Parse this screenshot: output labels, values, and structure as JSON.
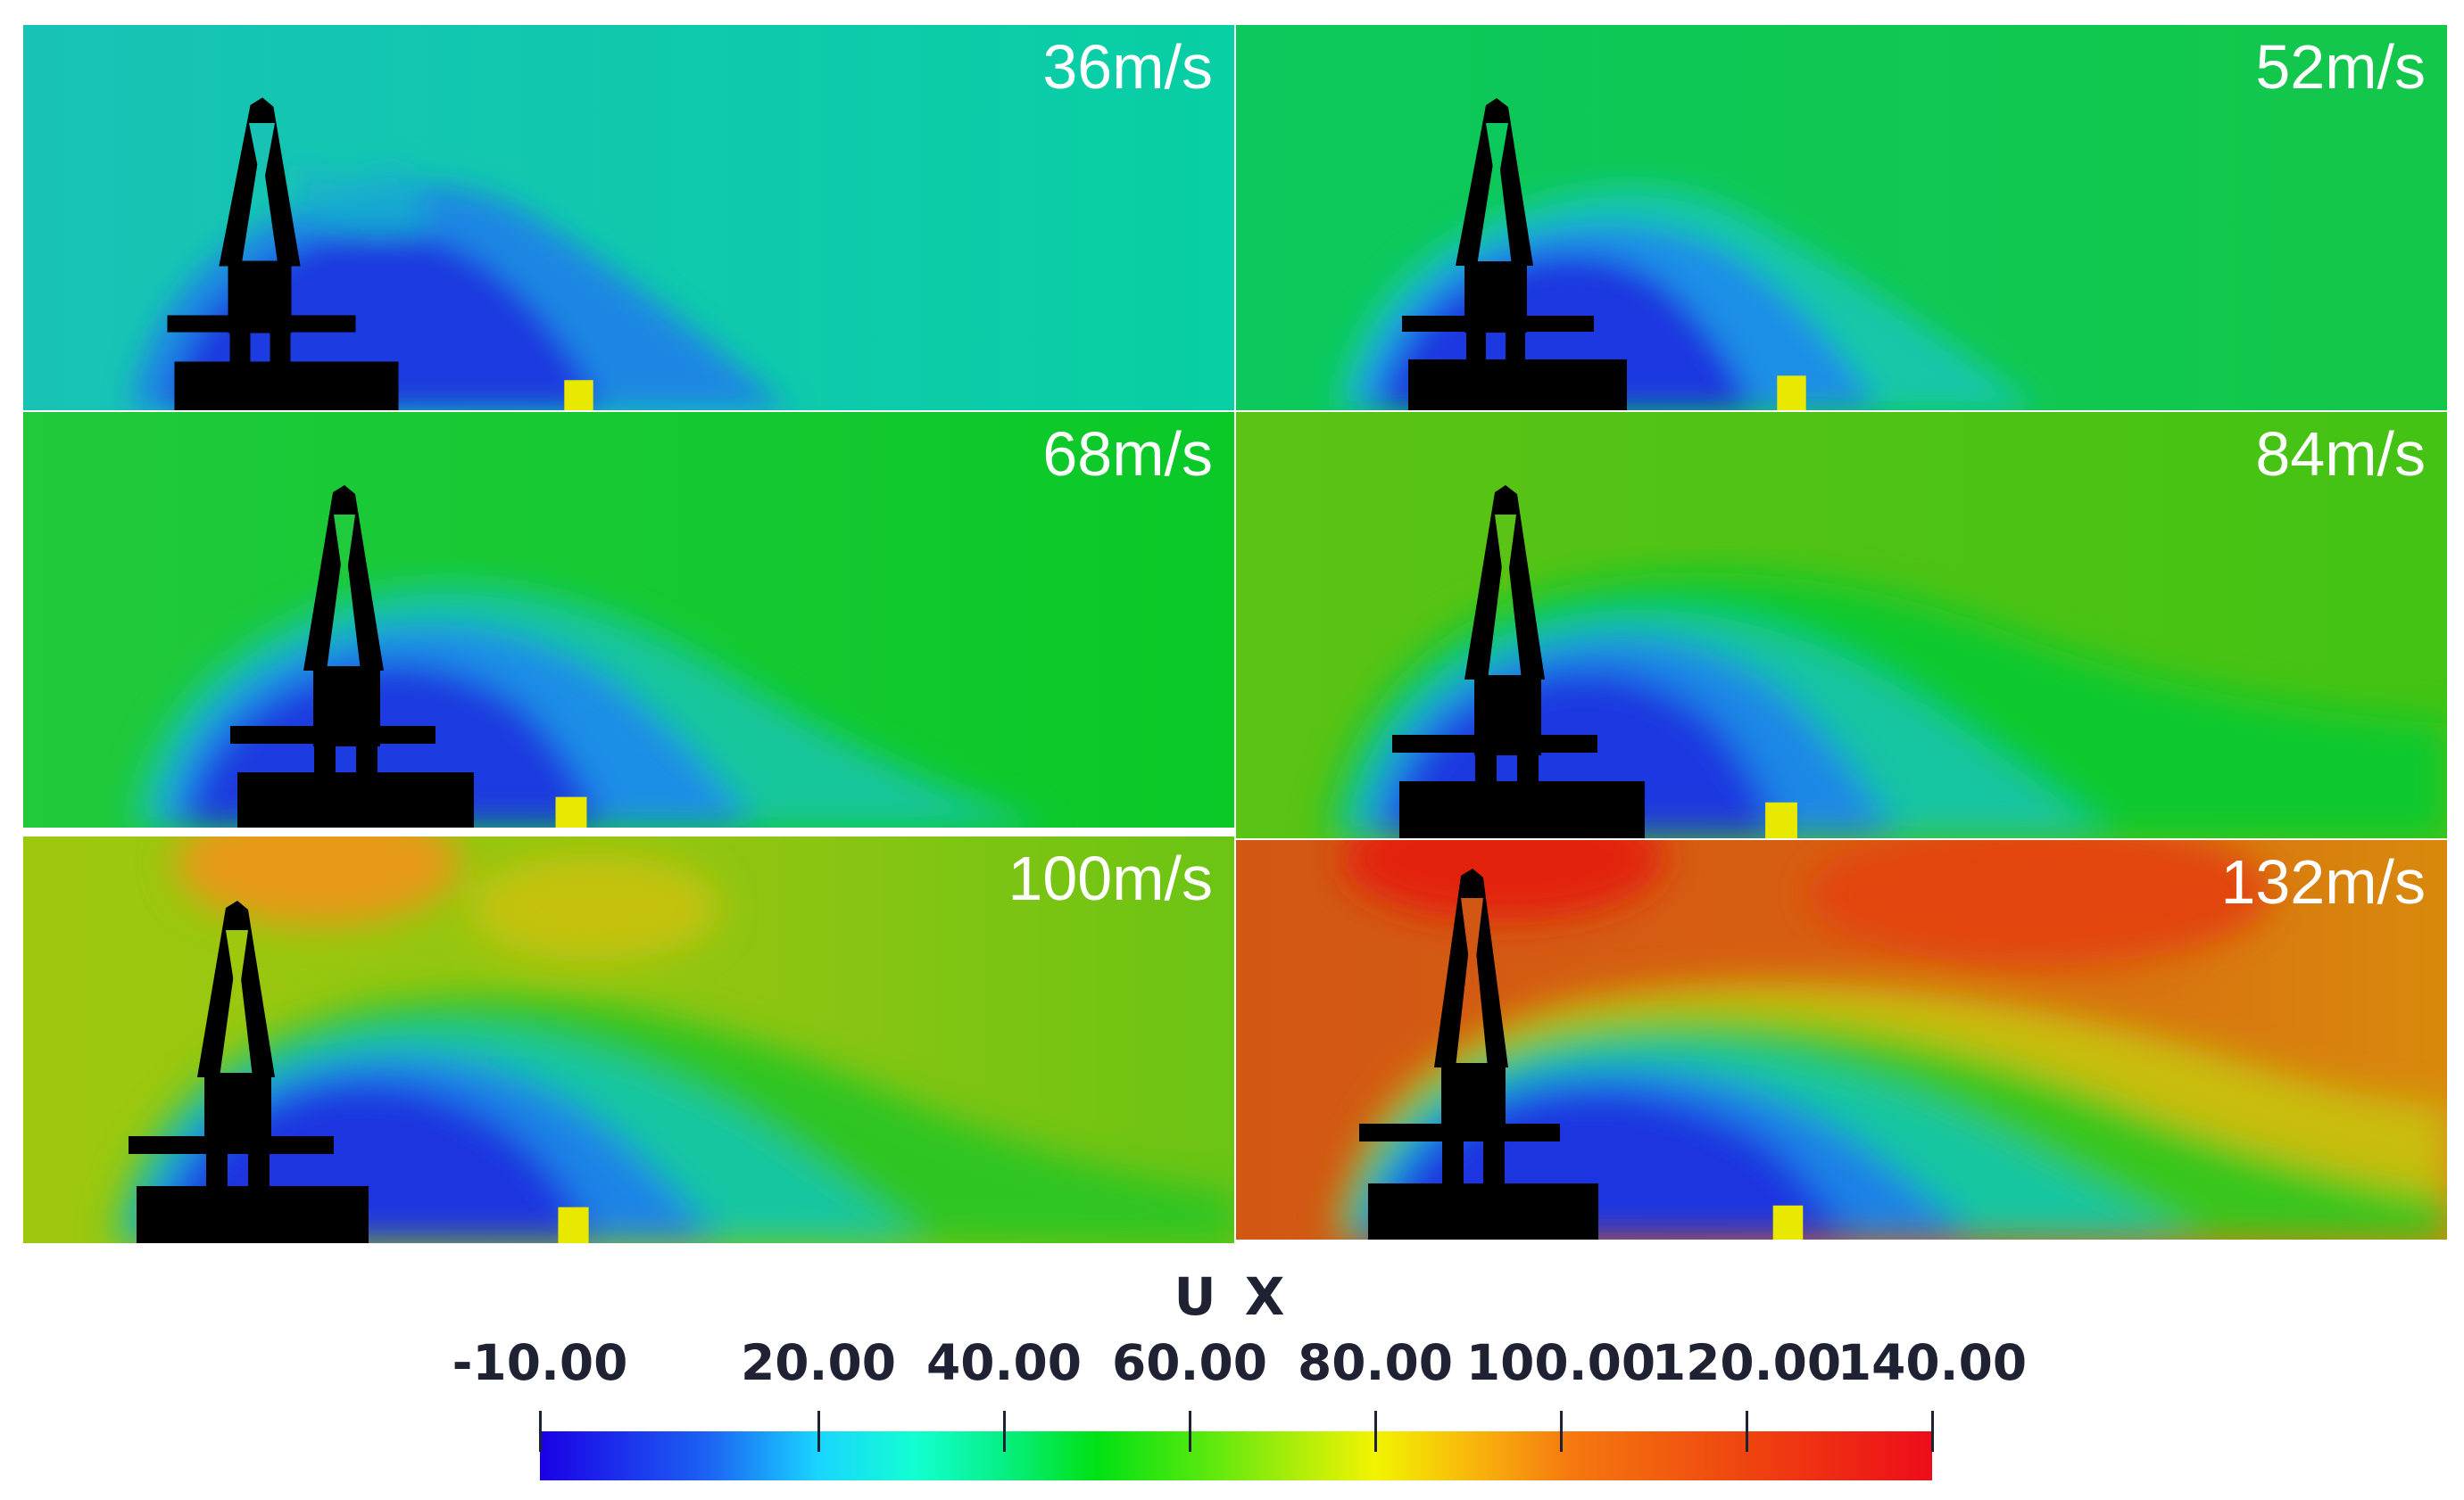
{
  "panels": [
    {
      "speed": "36m/s"
    },
    {
      "speed": "52m/s"
    },
    {
      "speed": "68m/s"
    },
    {
      "speed": "84m/s"
    },
    {
      "speed": "100m/s"
    },
    {
      "speed": "132m/s"
    }
  ],
  "legend": {
    "title": "U X",
    "ticks": [
      "-10.00",
      "20.00",
      "40.00",
      "60.00",
      "80.00",
      "100.00",
      "120.00",
      "140.00"
    ],
    "tick_values": [
      -10,
      20,
      40,
      60,
      80,
      100,
      120,
      140
    ],
    "range": [
      -10,
      140
    ],
    "colormap": [
      "#1b00e6",
      "#19d5ff",
      "#00e114",
      "#f2f402",
      "#ee0c1a"
    ]
  }
}
